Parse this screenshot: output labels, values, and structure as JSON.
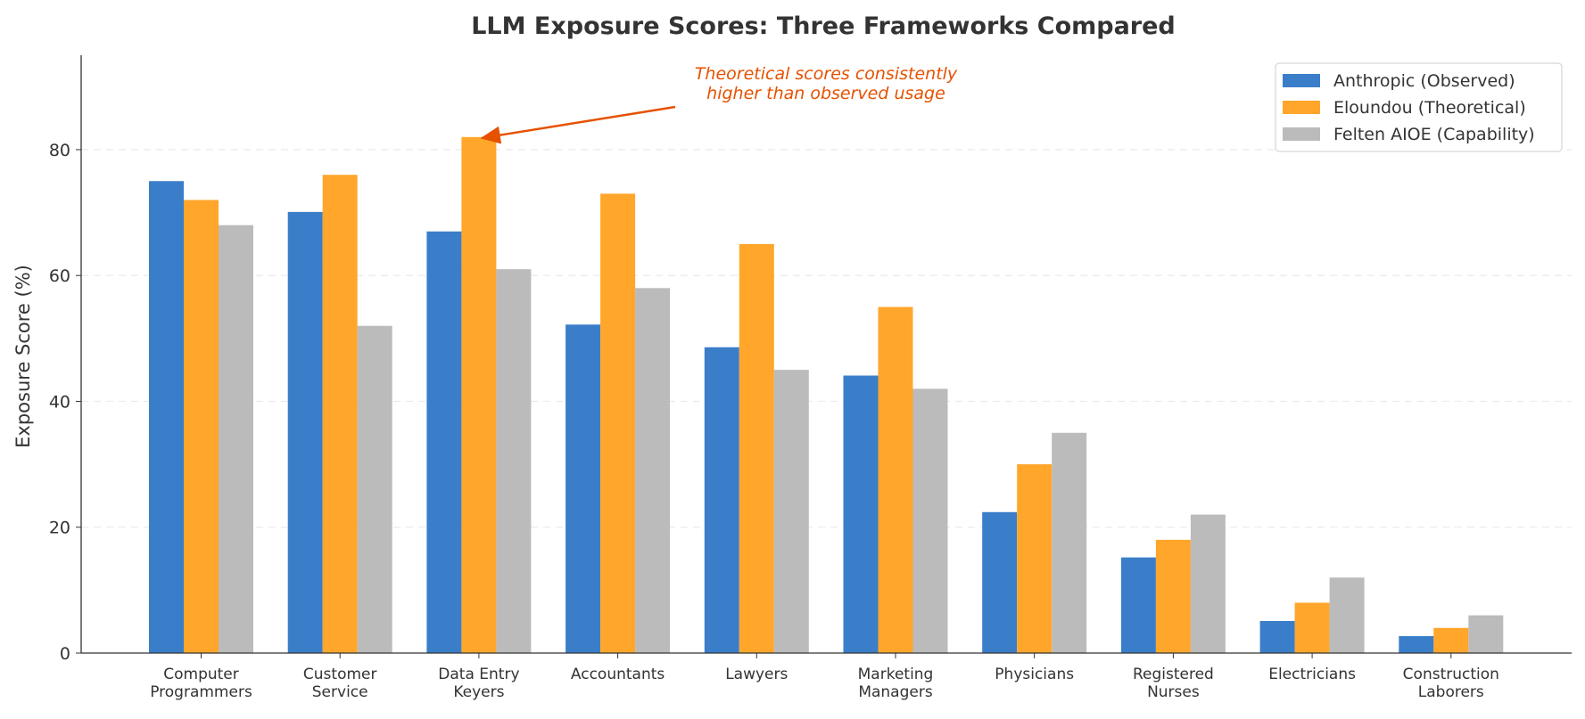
{
  "chart_data": {
    "type": "bar",
    "title": "LLM Exposure Scores: Three Frameworks Compared",
    "xlabel": "",
    "ylabel": "Exposure Score (%)",
    "ylim": [
      0,
      95
    ],
    "yticks": [
      0,
      20,
      40,
      60,
      80
    ],
    "grid": "horizontal dashed",
    "legend_position": "top-right",
    "categories": [
      [
        "Computer",
        "Programmers"
      ],
      [
        "Customer",
        "Service"
      ],
      [
        "Data Entry",
        "Keyers"
      ],
      [
        "Accountants"
      ],
      [
        "Lawyers"
      ],
      [
        "Marketing",
        "Managers"
      ],
      [
        "Physicians"
      ],
      [
        "Registered",
        "Nurses"
      ],
      [
        "Electricians"
      ],
      [
        "Construction",
        "Laborers"
      ]
    ],
    "series": [
      {
        "name": "Anthropic (Observed)",
        "color": "#3a7dc9",
        "values": [
          75,
          70.1,
          67,
          52.2,
          48.6,
          44.1,
          22.4,
          15.2,
          5.1,
          2.7
        ]
      },
      {
        "name": "Eloundou (Theoretical)",
        "color": "#ffa62b",
        "values": [
          72,
          76,
          82,
          73,
          65,
          55,
          30,
          18,
          8,
          4
        ]
      },
      {
        "name": "Felten AIOE (Capability)",
        "color": "#bbbbbb",
        "values": [
          68,
          52,
          61,
          58,
          45,
          42,
          35,
          22,
          12,
          6
        ]
      }
    ],
    "annotation": {
      "lines": [
        "Theoretical scores consistently",
        "higher than observed usage"
      ],
      "color": "#e65100",
      "points_to": {
        "category": "Data Entry Keyers",
        "series": "Eloundou (Theoretical)",
        "value": 82
      }
    }
  }
}
